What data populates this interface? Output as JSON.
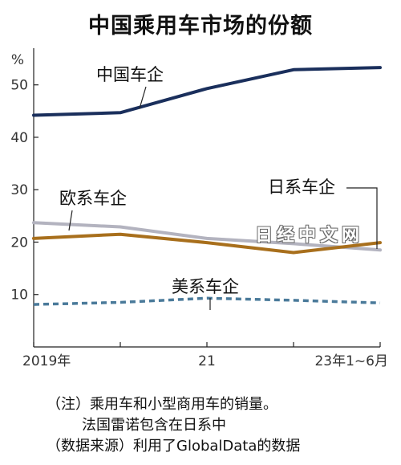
{
  "chart_data": {
    "type": "line",
    "title": "中国乘用车市场的份额",
    "ylabel": "%",
    "ylim": [
      0,
      57
    ],
    "yticks": [
      10,
      20,
      30,
      40,
      50
    ],
    "x": [
      2019,
      2020,
      2021,
      2022,
      2023
    ],
    "xtick_labels": [
      {
        "x": 2019,
        "label": "2019年"
      },
      {
        "x": 2021,
        "label": "21"
      },
      {
        "x": 2023,
        "label": "23年1~6月"
      }
    ],
    "grid": false,
    "legend": "inline-labels",
    "series": [
      {
        "name": "中国车企",
        "values": [
          44.2,
          44.7,
          49.3,
          52.9,
          53.3
        ],
        "color": "#1a2f5c",
        "style": "solid"
      },
      {
        "name": "欧系车企",
        "values": [
          23.7,
          22.9,
          20.7,
          19.7,
          18.5
        ],
        "color": "#b3b3bf",
        "style": "solid"
      },
      {
        "name": "日系车企",
        "values": [
          20.7,
          21.5,
          19.9,
          18.0,
          19.9
        ],
        "color": "#a86f1c",
        "style": "solid"
      },
      {
        "name": "美系车企",
        "values": [
          8.1,
          8.5,
          9.3,
          8.9,
          8.4
        ],
        "color": "#4a7a9a",
        "style": "dashed"
      }
    ]
  },
  "notes": [
    "（注）乘用车和小型商用车的销量。",
    "法国雷诺包含在日系中",
    "（数据来源）利用了GlobalData的数据"
  ],
  "watermark": "日经中文网"
}
